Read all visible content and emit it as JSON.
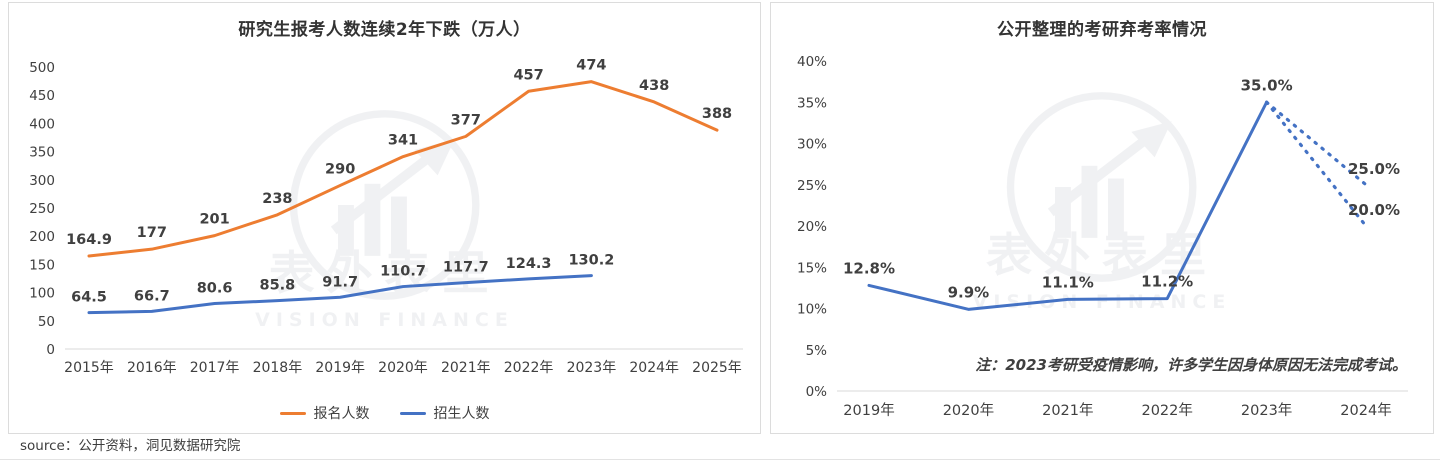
{
  "source_label": "source：公开资料，洞见数据研究院",
  "watermark": {
    "cn": "表外表里",
    "en": "VISION FINANCE"
  },
  "chart_data": [
    {
      "type": "line",
      "title": "研究生报考人数连续2年下跌（万人）",
      "categories": [
        "2015年",
        "2016年",
        "2017年",
        "2018年",
        "2019年",
        "2020年",
        "2021年",
        "2022年",
        "2023年",
        "2024年",
        "2025年"
      ],
      "series": [
        {
          "name": "报名人数",
          "color": "#ED7D31",
          "values": [
            164.9,
            177,
            201,
            238,
            290,
            341,
            377,
            457,
            474,
            438,
            388
          ],
          "labels": [
            "164.9",
            "177",
            "201",
            "238",
            "290",
            "341",
            "377",
            "457",
            "474",
            "438",
            "388"
          ]
        },
        {
          "name": "招生人数",
          "color": "#4472C4",
          "values": [
            64.5,
            66.7,
            80.6,
            85.8,
            91.7,
            110.7,
            117.7,
            124.3,
            130.2
          ],
          "labels": [
            "64.5",
            "66.7",
            "80.6",
            "85.8",
            "91.7",
            "110.7",
            "117.7",
            "124.3",
            "130.2"
          ]
        }
      ],
      "ylim": [
        0,
        500
      ],
      "ytick_step": 50,
      "ytick_suffix": "",
      "grid": false,
      "legend_position": "bottom"
    },
    {
      "type": "line",
      "title": "公开整理的考研弃考率情况",
      "categories": [
        "2019年",
        "2020年",
        "2021年",
        "2022年",
        "2023年",
        "2024年"
      ],
      "series": [
        {
          "name": "弃考率",
          "color": "#4472C4",
          "style": "solid",
          "values": [
            12.8,
            9.9,
            11.1,
            11.2,
            35.0
          ],
          "labels": [
            "12.8%",
            "9.9%",
            "11.1%",
            "11.2%",
            "35.0%"
          ]
        }
      ],
      "projections": [
        {
          "from_index": 4,
          "from_value": 35.0,
          "to_index": 5,
          "to_value": 25.0,
          "label": "25.0%",
          "style": "dotted"
        },
        {
          "from_index": 4,
          "from_value": 35.0,
          "to_index": 5,
          "to_value": 20.0,
          "label": "20.0%",
          "style": "dotted"
        }
      ],
      "ylim": [
        0,
        40
      ],
      "ytick_step": 5,
      "ytick_suffix": "%",
      "grid": false,
      "note": "注：2023考研受疫情影响，许多学生因身体原因无法完成考试。"
    }
  ]
}
